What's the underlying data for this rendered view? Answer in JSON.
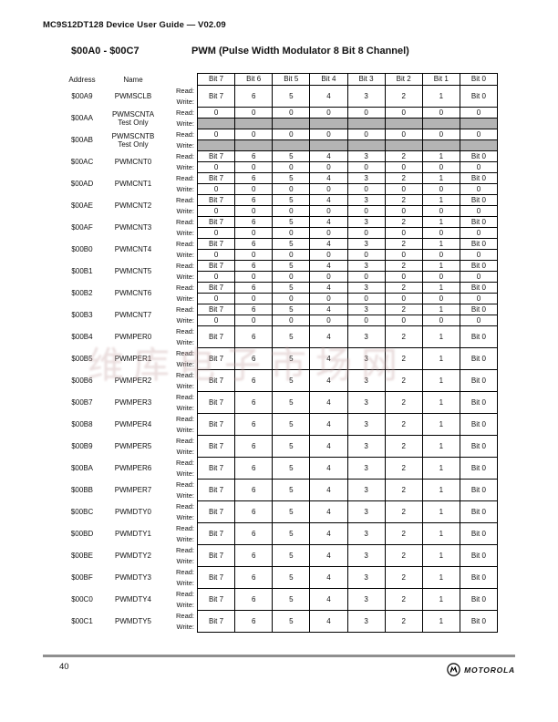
{
  "page": {
    "header": "MC9S12DT128 Device User Guide — V02.09",
    "address_range": "$00A0 - $00C7",
    "module_title": "PWM (Pulse Width Modulator 8 Bit 8 Channel)",
    "page_number": "40",
    "brand": "MOTOROLA",
    "watermark": "维库电子市场网"
  },
  "colors": {
    "shaded_cell": "#b4b4b4",
    "footer_rule": "#8f8f8f",
    "watermark": "#c9a8a8"
  },
  "table": {
    "col_address": "Address",
    "col_name": "Name",
    "read_label": "Read:",
    "write_label": "Write:",
    "bit_headers": [
      "Bit 7",
      "Bit 6",
      "Bit 5",
      "Bit 4",
      "Bit 3",
      "Bit 2",
      "Bit 1",
      "Bit 0"
    ],
    "registers": [
      {
        "address": "$00A9",
        "name": "PWMSCLB",
        "type": "merged",
        "bits": [
          "Bit 7",
          "6",
          "5",
          "4",
          "3",
          "2",
          "1",
          "Bit 0"
        ]
      },
      {
        "address": "$00AA",
        "name": "PWMSCNTA",
        "name_note": "Test Only",
        "type": "read_write_shaded",
        "read": [
          "0",
          "0",
          "0",
          "0",
          "0",
          "0",
          "0",
          "0"
        ]
      },
      {
        "address": "$00AB",
        "name": "PWMSCNTB",
        "name_note": "Test Only",
        "type": "read_write_shaded",
        "read": [
          "0",
          "0",
          "0",
          "0",
          "0",
          "0",
          "0",
          "0"
        ]
      },
      {
        "address": "$00AC",
        "name": "PWMCNT0",
        "type": "split",
        "read": [
          "Bit 7",
          "6",
          "5",
          "4",
          "3",
          "2",
          "1",
          "Bit 0"
        ],
        "write": [
          "0",
          "0",
          "0",
          "0",
          "0",
          "0",
          "0",
          "0"
        ]
      },
      {
        "address": "$00AD",
        "name": "PWMCNT1",
        "type": "split",
        "read": [
          "Bit 7",
          "6",
          "5",
          "4",
          "3",
          "2",
          "1",
          "Bit 0"
        ],
        "write": [
          "0",
          "0",
          "0",
          "0",
          "0",
          "0",
          "0",
          "0"
        ]
      },
      {
        "address": "$00AE",
        "name": "PWMCNT2",
        "type": "split",
        "read": [
          "Bit 7",
          "6",
          "5",
          "4",
          "3",
          "2",
          "1",
          "Bit 0"
        ],
        "write": [
          "0",
          "0",
          "0",
          "0",
          "0",
          "0",
          "0",
          "0"
        ]
      },
      {
        "address": "$00AF",
        "name": "PWMCNT3",
        "type": "split",
        "read": [
          "Bit 7",
          "6",
          "5",
          "4",
          "3",
          "2",
          "1",
          "Bit 0"
        ],
        "write": [
          "0",
          "0",
          "0",
          "0",
          "0",
          "0",
          "0",
          "0"
        ]
      },
      {
        "address": "$00B0",
        "name": "PWMCNT4",
        "type": "split",
        "read": [
          "Bit 7",
          "6",
          "5",
          "4",
          "3",
          "2",
          "1",
          "Bit 0"
        ],
        "write": [
          "0",
          "0",
          "0",
          "0",
          "0",
          "0",
          "0",
          "0"
        ]
      },
      {
        "address": "$00B1",
        "name": "PWMCNT5",
        "type": "split",
        "read": [
          "Bit 7",
          "6",
          "5",
          "4",
          "3",
          "2",
          "1",
          "Bit 0"
        ],
        "write": [
          "0",
          "0",
          "0",
          "0",
          "0",
          "0",
          "0",
          "0"
        ]
      },
      {
        "address": "$00B2",
        "name": "PWMCNT6",
        "type": "split",
        "read": [
          "Bit 7",
          "6",
          "5",
          "4",
          "3",
          "2",
          "1",
          "Bit 0"
        ],
        "write": [
          "0",
          "0",
          "0",
          "0",
          "0",
          "0",
          "0",
          "0"
        ]
      },
      {
        "address": "$00B3",
        "name": "PWMCNT7",
        "type": "split",
        "read": [
          "Bit 7",
          "6",
          "5",
          "4",
          "3",
          "2",
          "1",
          "Bit 0"
        ],
        "write": [
          "0",
          "0",
          "0",
          "0",
          "0",
          "0",
          "0",
          "0"
        ]
      },
      {
        "address": "$00B4",
        "name": "PWMPER0",
        "type": "merged",
        "bits": [
          "Bit 7",
          "6",
          "5",
          "4",
          "3",
          "2",
          "1",
          "Bit 0"
        ]
      },
      {
        "address": "$00B5",
        "name": "PWMPER1",
        "type": "merged",
        "bits": [
          "Bit 7",
          "6",
          "5",
          "4",
          "3",
          "2",
          "1",
          "Bit 0"
        ]
      },
      {
        "address": "$00B6",
        "name": "PWMPER2",
        "type": "merged",
        "bits": [
          "Bit 7",
          "6",
          "5",
          "4",
          "3",
          "2",
          "1",
          "Bit 0"
        ]
      },
      {
        "address": "$00B7",
        "name": "PWMPER3",
        "type": "merged",
        "bits": [
          "Bit 7",
          "6",
          "5",
          "4",
          "3",
          "2",
          "1",
          "Bit 0"
        ]
      },
      {
        "address": "$00B8",
        "name": "PWMPER4",
        "type": "merged",
        "bits": [
          "Bit 7",
          "6",
          "5",
          "4",
          "3",
          "2",
          "1",
          "Bit 0"
        ]
      },
      {
        "address": "$00B9",
        "name": "PWMPER5",
        "type": "merged",
        "bits": [
          "Bit 7",
          "6",
          "5",
          "4",
          "3",
          "2",
          "1",
          "Bit 0"
        ]
      },
      {
        "address": "$00BA",
        "name": "PWMPER6",
        "type": "merged",
        "bits": [
          "Bit 7",
          "6",
          "5",
          "4",
          "3",
          "2",
          "1",
          "Bit 0"
        ]
      },
      {
        "address": "$00BB",
        "name": "PWMPER7",
        "type": "merged",
        "bits": [
          "Bit 7",
          "6",
          "5",
          "4",
          "3",
          "2",
          "1",
          "Bit 0"
        ]
      },
      {
        "address": "$00BC",
        "name": "PWMDTY0",
        "type": "merged",
        "bits": [
          "Bit 7",
          "6",
          "5",
          "4",
          "3",
          "2",
          "1",
          "Bit 0"
        ]
      },
      {
        "address": "$00BD",
        "name": "PWMDTY1",
        "type": "merged",
        "bits": [
          "Bit 7",
          "6",
          "5",
          "4",
          "3",
          "2",
          "1",
          "Bit 0"
        ]
      },
      {
        "address": "$00BE",
        "name": "PWMDTY2",
        "type": "merged",
        "bits": [
          "Bit 7",
          "6",
          "5",
          "4",
          "3",
          "2",
          "1",
          "Bit 0"
        ]
      },
      {
        "address": "$00BF",
        "name": "PWMDTY3",
        "type": "merged",
        "bits": [
          "Bit 7",
          "6",
          "5",
          "4",
          "3",
          "2",
          "1",
          "Bit 0"
        ]
      },
      {
        "address": "$00C0",
        "name": "PWMDTY4",
        "type": "merged",
        "bits": [
          "Bit 7",
          "6",
          "5",
          "4",
          "3",
          "2",
          "1",
          "Bit 0"
        ]
      },
      {
        "address": "$00C1",
        "name": "PWMDTY5",
        "type": "merged",
        "bits": [
          "Bit 7",
          "6",
          "5",
          "4",
          "3",
          "2",
          "1",
          "Bit 0"
        ]
      }
    ]
  }
}
